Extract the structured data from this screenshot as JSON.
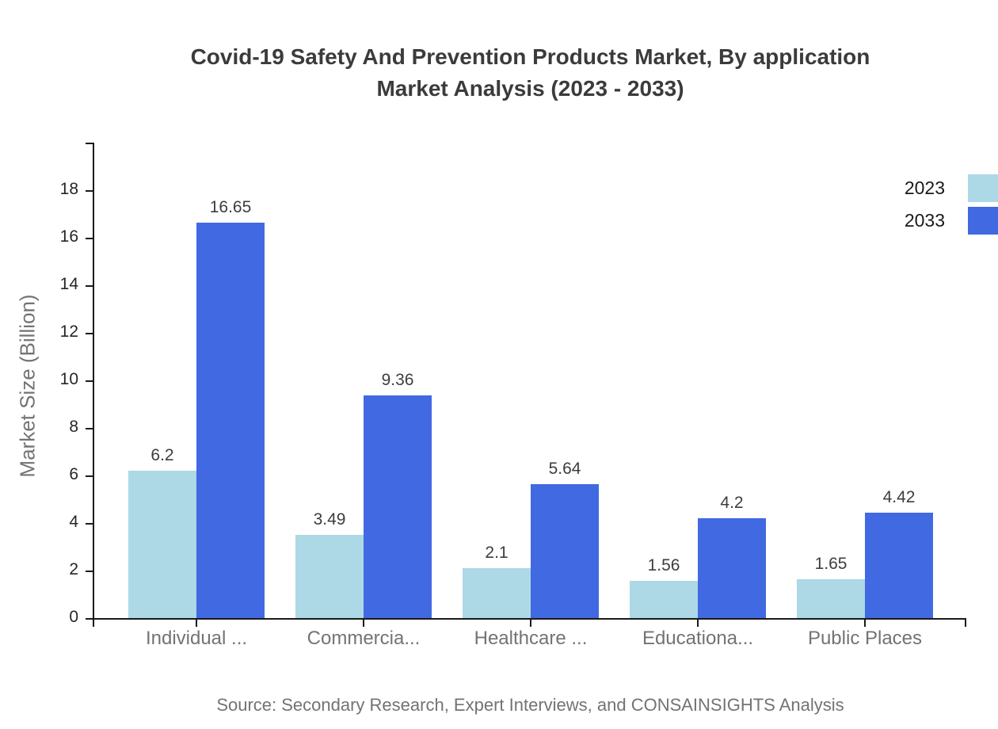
{
  "title": {
    "line1": "Covid-19 Safety And Prevention Products Market, By application",
    "line2": "Market Analysis (2023 - 2033)"
  },
  "source": "Source: Secondary Research, Expert Interviews, and CONSAINSIGHTS Analysis",
  "chart_data": {
    "type": "bar",
    "title": "Covid-19 Safety And Prevention Products Market, By application Market Analysis (2023 - 2033)",
    "categories": [
      "Individual ...",
      "Commercia...",
      "Healthcare ...",
      "Educationa...",
      "Public Places"
    ],
    "series": [
      {
        "name": "2023",
        "color": "#ADD8E6",
        "values": [
          6.2,
          3.49,
          2.1,
          1.56,
          1.65
        ]
      },
      {
        "name": "2033",
        "color": "#4169E1",
        "values": [
          16.65,
          9.36,
          5.64,
          4.2,
          4.42
        ]
      }
    ],
    "value_labels": [
      "6.2",
      "16.65",
      "3.49",
      "9.36",
      "2.1",
      "5.64",
      "1.56",
      "4.2",
      "1.65",
      "4.42"
    ],
    "xlabel": "",
    "ylabel": "Market Size (Billion)",
    "yticks": [
      0,
      2,
      4,
      6,
      8,
      10,
      12,
      14,
      16,
      18
    ],
    "ylim": [
      0,
      20
    ],
    "grid": false,
    "legend_position": "top-right",
    "axis_color": "#1a1a1a"
  }
}
